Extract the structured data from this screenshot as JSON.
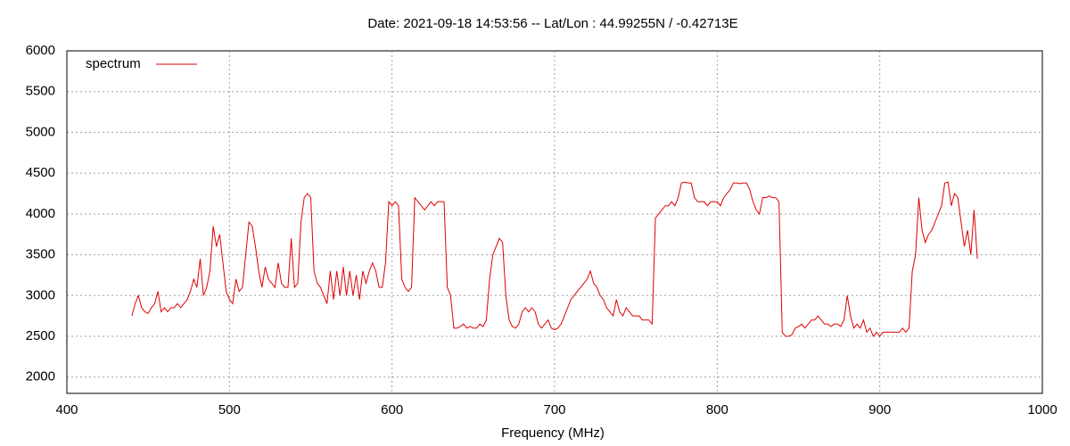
{
  "chart_data": {
    "type": "line",
    "title": "Date: 2021-09-18 14:53:56  --  Lat/Lon : 44.99255N / -0.42713E",
    "x_label": "Frequency (MHz)",
    "xlim": [
      400,
      1000
    ],
    "xticks": [
      400,
      500,
      600,
      700,
      800,
      900,
      1000
    ],
    "ylim": [
      1800,
      6000
    ],
    "yticks": [
      2000,
      2500,
      3000,
      3500,
      4000,
      4500,
      5000,
      5500,
      6000
    ],
    "grid": true,
    "legend": "top-left",
    "x": [
      440,
      442,
      444,
      446,
      448,
      450,
      452,
      454,
      456,
      458,
      460,
      462,
      464,
      466,
      468,
      470,
      472,
      474,
      476,
      478,
      480,
      482,
      484,
      486,
      488,
      490,
      492,
      494,
      496,
      498,
      500,
      502,
      504,
      506,
      508,
      510,
      512,
      514,
      516,
      518,
      520,
      522,
      524,
      526,
      528,
      530,
      532,
      534,
      536,
      538,
      540,
      542,
      544,
      546,
      548,
      550,
      552,
      554,
      556,
      558,
      560,
      562,
      564,
      566,
      568,
      570,
      572,
      574,
      576,
      578,
      580,
      582,
      584,
      586,
      588,
      590,
      592,
      594,
      596,
      598,
      600,
      602,
      604,
      606,
      608,
      610,
      612,
      614,
      616,
      618,
      620,
      622,
      624,
      626,
      628,
      630,
      632,
      634,
      636,
      638,
      640,
      642,
      644,
      646,
      648,
      650,
      652,
      654,
      656,
      658,
      660,
      662,
      664,
      666,
      668,
      670,
      672,
      674,
      676,
      678,
      680,
      682,
      684,
      686,
      688,
      690,
      692,
      694,
      696,
      698,
      700,
      702,
      704,
      706,
      708,
      710,
      712,
      714,
      716,
      718,
      720,
      722,
      724,
      726,
      728,
      730,
      732,
      734,
      736,
      738,
      740,
      742,
      744,
      746,
      748,
      750,
      752,
      754,
      756,
      758,
      760,
      762,
      764,
      766,
      768,
      770,
      772,
      774,
      776,
      778,
      780,
      782,
      784,
      786,
      788,
      790,
      792,
      794,
      796,
      798,
      800,
      802,
      804,
      806,
      808,
      810,
      812,
      814,
      816,
      818,
      820,
      822,
      824,
      826,
      828,
      830,
      832,
      834,
      836,
      838,
      840,
      842,
      844,
      846,
      848,
      850,
      852,
      854,
      856,
      858,
      860,
      862,
      864,
      866,
      868,
      870,
      872,
      874,
      876,
      878,
      880,
      882,
      884,
      886,
      888,
      890,
      892,
      894,
      896,
      898,
      900,
      902,
      904,
      906,
      908,
      910,
      912,
      914,
      916,
      918,
      920,
      922,
      924,
      926,
      928,
      930,
      932,
      934,
      936,
      938,
      940,
      942,
      944,
      946,
      948,
      950,
      952,
      954,
      956,
      958,
      960
    ],
    "series": [
      {
        "name": "spectrum",
        "color": "#e00000",
        "values": [
          2750,
          2900,
          3000,
          2850,
          2800,
          2780,
          2850,
          2900,
          3050,
          2800,
          2850,
          2800,
          2850,
          2850,
          2900,
          2850,
          2900,
          2950,
          3050,
          3200,
          3100,
          3450,
          3000,
          3100,
          3300,
          3850,
          3600,
          3750,
          3400,
          3050,
          2950,
          2900,
          3200,
          3050,
          3100,
          3500,
          3900,
          3850,
          3600,
          3300,
          3100,
          3350,
          3200,
          3150,
          3100,
          3400,
          3150,
          3100,
          3100,
          3700,
          3100,
          3150,
          3900,
          4200,
          4250,
          4200,
          3300,
          3150,
          3100,
          3000,
          2900,
          3300,
          2950,
          3300,
          3000,
          3350,
          3000,
          3300,
          3000,
          3250,
          2950,
          3300,
          3150,
          3300,
          3400,
          3300,
          3100,
          3100,
          3400,
          4150,
          4100,
          4150,
          4100,
          3200,
          3100,
          3050,
          3100,
          4200,
          4150,
          4100,
          4050,
          4100,
          4150,
          4100,
          4150,
          4150,
          4150,
          3100,
          3000,
          2600,
          2600,
          2620,
          2650,
          2600,
          2620,
          2600,
          2600,
          2650,
          2620,
          2700,
          3200,
          3500,
          3600,
          3700,
          3650,
          3000,
          2700,
          2620,
          2600,
          2650,
          2800,
          2850,
          2800,
          2850,
          2800,
          2650,
          2600,
          2650,
          2700,
          2600,
          2580,
          2600,
          2650,
          2750,
          2850,
          2950,
          3000,
          3050,
          3100,
          3150,
          3200,
          3300,
          3150,
          3100,
          3000,
          2950,
          2850,
          2800,
          2750,
          2950,
          2800,
          2750,
          2850,
          2800,
          2750,
          2750,
          2750,
          2700,
          2700,
          2700,
          2650,
          3950,
          4000,
          4050,
          4100,
          4100,
          4150,
          4100,
          4200,
          4380,
          4390,
          4380,
          4380,
          4200,
          4150,
          4150,
          4150,
          4100,
          4150,
          4150,
          4150,
          4100,
          4200,
          4250,
          4300,
          4380,
          4380,
          4370,
          4380,
          4380,
          4300,
          4150,
          4050,
          4000,
          4200,
          4200,
          4220,
          4200,
          4200,
          4150,
          2550,
          2500,
          2500,
          2520,
          2600,
          2620,
          2650,
          2600,
          2650,
          2700,
          2700,
          2750,
          2700,
          2650,
          2650,
          2620,
          2650,
          2650,
          2620,
          2700,
          3000,
          2750,
          2600,
          2650,
          2600,
          2700,
          2550,
          2600,
          2500,
          2550,
          2500,
          2550,
          2550,
          2550,
          2550,
          2550,
          2550,
          2600,
          2550,
          2600,
          3300,
          3500,
          4200,
          3800,
          3650,
          3750,
          3800,
          3900,
          4000,
          4100,
          4380,
          4390,
          4100,
          4250,
          4200,
          3900,
          3600,
          3800,
          3500,
          4050,
          3450
        ]
      }
    ]
  }
}
